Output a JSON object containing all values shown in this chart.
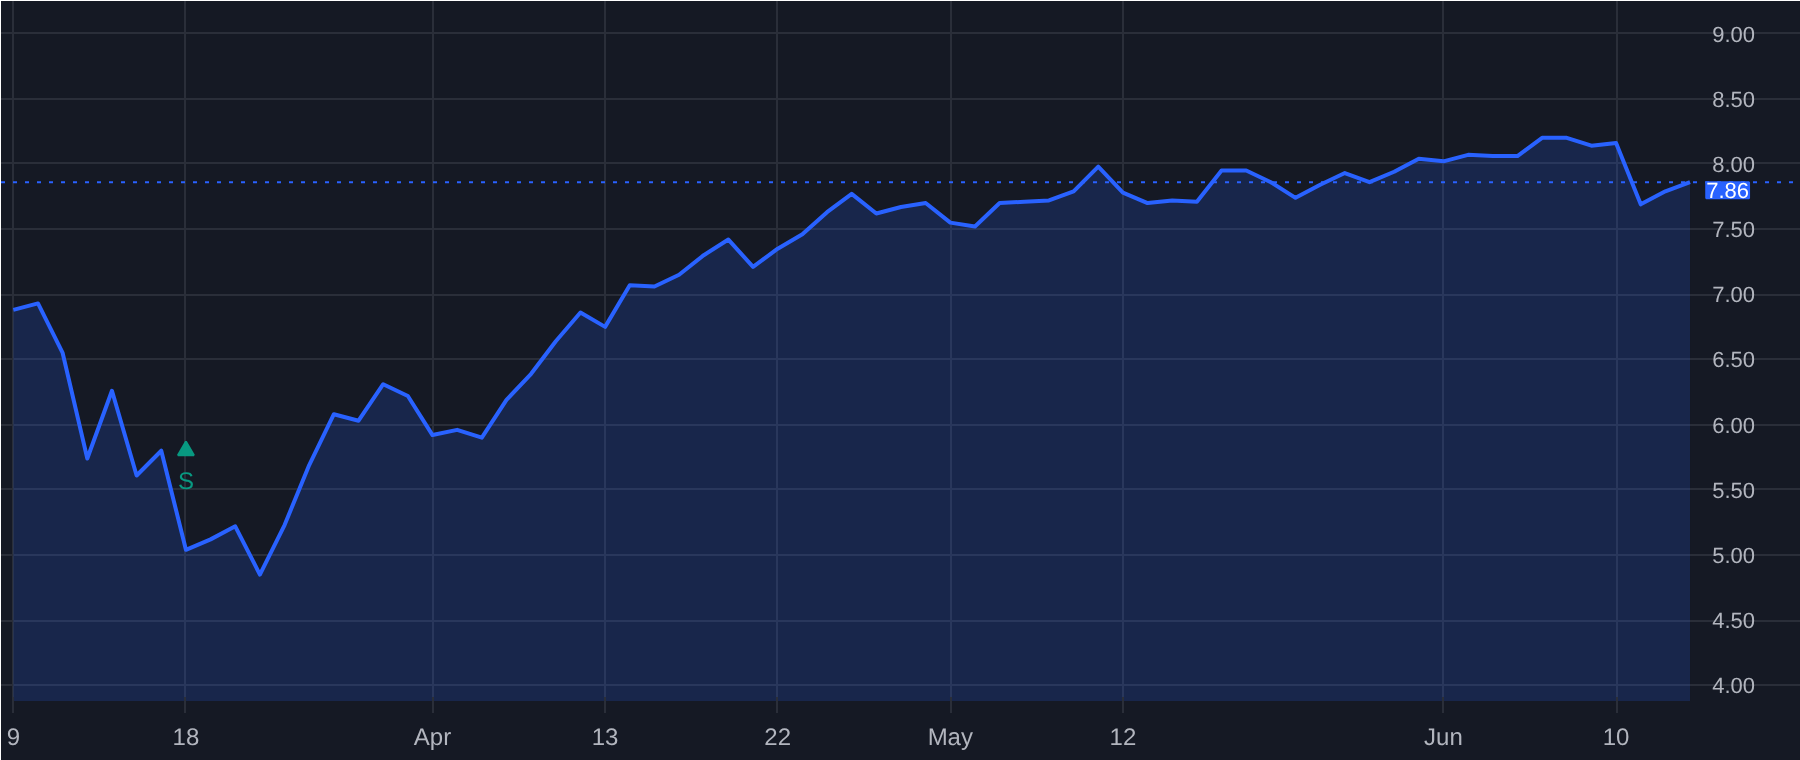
{
  "chart_data": {
    "type": "area",
    "categories": [
      "9",
      null,
      null,
      null,
      null,
      null,
      null,
      "18",
      null,
      null,
      null,
      null,
      null,
      null,
      null,
      null,
      null,
      "Apr",
      null,
      null,
      null,
      null,
      null,
      null,
      "13",
      null,
      null,
      null,
      null,
      null,
      null,
      "22",
      null,
      null,
      null,
      null,
      null,
      null,
      "May",
      null,
      null,
      null,
      null,
      null,
      null,
      "12",
      null,
      null,
      null,
      null,
      null,
      null,
      null,
      null,
      null,
      null,
      null,
      null,
      "Jun",
      null,
      null,
      null,
      null,
      null,
      null,
      "10",
      null,
      null,
      null
    ],
    "series": [
      {
        "color": "#2962ff",
        "values": [
          6.88,
          6.93,
          6.55,
          5.74,
          6.26,
          5.61,
          5.8,
          5.04,
          5.12,
          5.22,
          4.85,
          5.23,
          5.69,
          6.08,
          6.03,
          6.31,
          6.22,
          5.92,
          5.96,
          5.9,
          6.19,
          6.39,
          6.64,
          6.86,
          6.75,
          7.07,
          7.06,
          7.15,
          7.3,
          7.42,
          7.21,
          7.35,
          7.46,
          7.63,
          7.77,
          7.62,
          7.67,
          7.7,
          7.55,
          7.52,
          7.7,
          7.71,
          7.72,
          7.79,
          7.98,
          7.78,
          7.7,
          7.72,
          7.71,
          7.95,
          7.95,
          7.86,
          7.74,
          7.84,
          7.93,
          7.86,
          7.94,
          8.04,
          8.02,
          8.07,
          8.06,
          8.06,
          8.2,
          8.2,
          8.14,
          8.16,
          7.69,
          7.79,
          7.86
        ]
      }
    ],
    "ylim": [
      3.88,
      9.25
    ],
    "yticks": [
      {
        "value": 4,
        "label": "4.00"
      },
      {
        "value": 4.5,
        "label": "4.50"
      },
      {
        "value": 5,
        "label": "5.00"
      },
      {
        "value": 5.5,
        "label": "5.50"
      },
      {
        "value": 6,
        "label": "6.00"
      },
      {
        "value": 6.5,
        "label": "6.50"
      },
      {
        "value": 7,
        "label": "7.00"
      },
      {
        "value": 7.5,
        "label": "7.50"
      },
      {
        "value": 8,
        "label": "8.00"
      },
      {
        "value": 8.5,
        "label": "8.50"
      },
      {
        "value": 9,
        "label": "9.00"
      }
    ],
    "ref_lines": [
      {
        "axis": "y",
        "value": 7.86,
        "label": "7.86",
        "color": "#2962ff",
        "line_style": "dotted"
      }
    ],
    "annotations": [
      {
        "text": "S",
        "x": "18",
        "y": 5.8
      }
    ],
    "grid": true,
    "line_style": "solid"
  }
}
